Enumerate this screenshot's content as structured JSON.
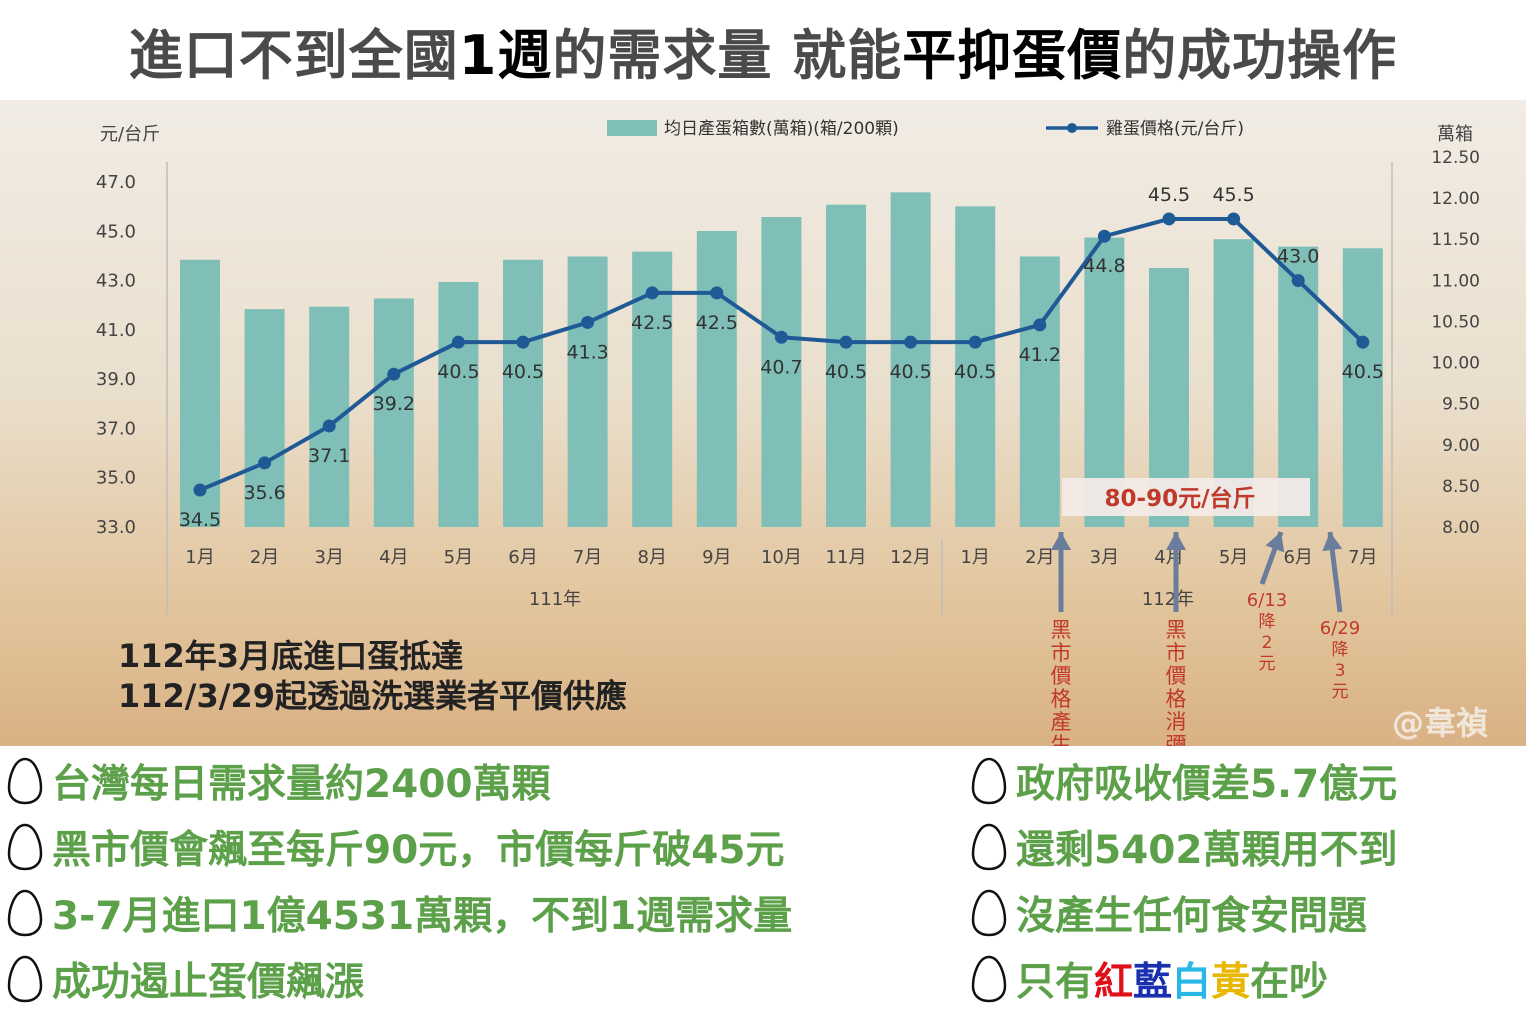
{
  "headline": {
    "p1": "進口不到全國",
    "p2": "1週",
    "p3": "的需求量 就能",
    "p4": "平抑蛋價",
    "p5": "的成功操作"
  },
  "chart_data": {
    "type": "bar+line",
    "left_axis_unit": "元/台斤",
    "right_axis_unit": "萬箱",
    "left_ticks": [
      "47.0",
      "45.0",
      "43.0",
      "41.0",
      "39.0",
      "37.0",
      "35.0",
      "33.0"
    ],
    "right_ticks": [
      "12.50",
      "12.00",
      "11.50",
      "11.00",
      "10.50",
      "10.00",
      "9.50",
      "9.00",
      "8.50",
      "8.00"
    ],
    "ylim_left": [
      33,
      47
    ],
    "ylim_right": [
      8,
      12.5
    ],
    "categories": [
      "1月",
      "2月",
      "3月",
      "4月",
      "5月",
      "6月",
      "7月",
      "8月",
      "9月",
      "10月",
      "11月",
      "12月",
      "1月",
      "2月",
      "3月",
      "4月",
      "5月",
      "6月",
      "7月"
    ],
    "year_groups": [
      {
        "label": "111年",
        "count": 12
      },
      {
        "label": "112年",
        "count": 7
      }
    ],
    "series": [
      {
        "name": "均日產蛋箱數(萬箱)(箱/200顆)",
        "type": "bar",
        "axis": "right",
        "color": "#7fbfb7",
        "values": [
          11.25,
          10.65,
          10.68,
          10.78,
          10.98,
          11.25,
          11.29,
          11.35,
          11.6,
          11.77,
          11.92,
          12.07,
          11.9,
          11.29,
          11.52,
          11.15,
          11.5,
          11.41,
          11.39
        ]
      },
      {
        "name": "雞蛋價格(元/台斤)",
        "type": "line",
        "axis": "left",
        "color": "#1f5a96",
        "values": [
          34.5,
          35.6,
          37.1,
          39.2,
          40.5,
          40.5,
          41.3,
          42.5,
          42.5,
          40.7,
          40.5,
          40.5,
          40.5,
          41.2,
          44.8,
          45.5,
          45.5,
          43.0,
          40.5
        ],
        "labels": [
          "34.5",
          "35.6",
          "37.1",
          "39.2",
          "40.5",
          "40.5",
          "41.3",
          "42.5",
          "42.5",
          "40.7",
          "40.5",
          "40.5",
          "40.5",
          "41.2",
          "44.8",
          "45.5",
          "45.5",
          "43.0",
          "40.5"
        ]
      }
    ],
    "callout": "80-90元/台斤",
    "annotations": [
      "黑市價格產生",
      "黑市價格消彌",
      "6/13降2元",
      "6/29降3元"
    ]
  },
  "notes": {
    "line1": "112年3月底進口蛋抵達",
    "line2": "112/3/29起透過洗選業者平價供應"
  },
  "watermark": "@韋禎",
  "bullets_left": [
    "台灣每日需求量約2400萬顆",
    "黑市價會飆至每斤90元，市價每斤破45元",
    "3-7月進口1億4531萬顆，不到1週需求量",
    "成功遏止蛋價飆漲"
  ],
  "bullets_right": [
    "政府吸收價差5.7億元",
    "還剩5402萬顆用不到",
    "沒產生任何食安問題"
  ],
  "bullet_last": {
    "prefix": "只有",
    "red": "紅",
    "blue": "藍",
    "white": "白",
    "yellow": "黃",
    "suffix": "在吵"
  },
  "colors": {
    "bar": "#7fbfb7",
    "line": "#1f5a96",
    "annotation_red": "#c0392b",
    "bullet_green": "#5da04a"
  }
}
